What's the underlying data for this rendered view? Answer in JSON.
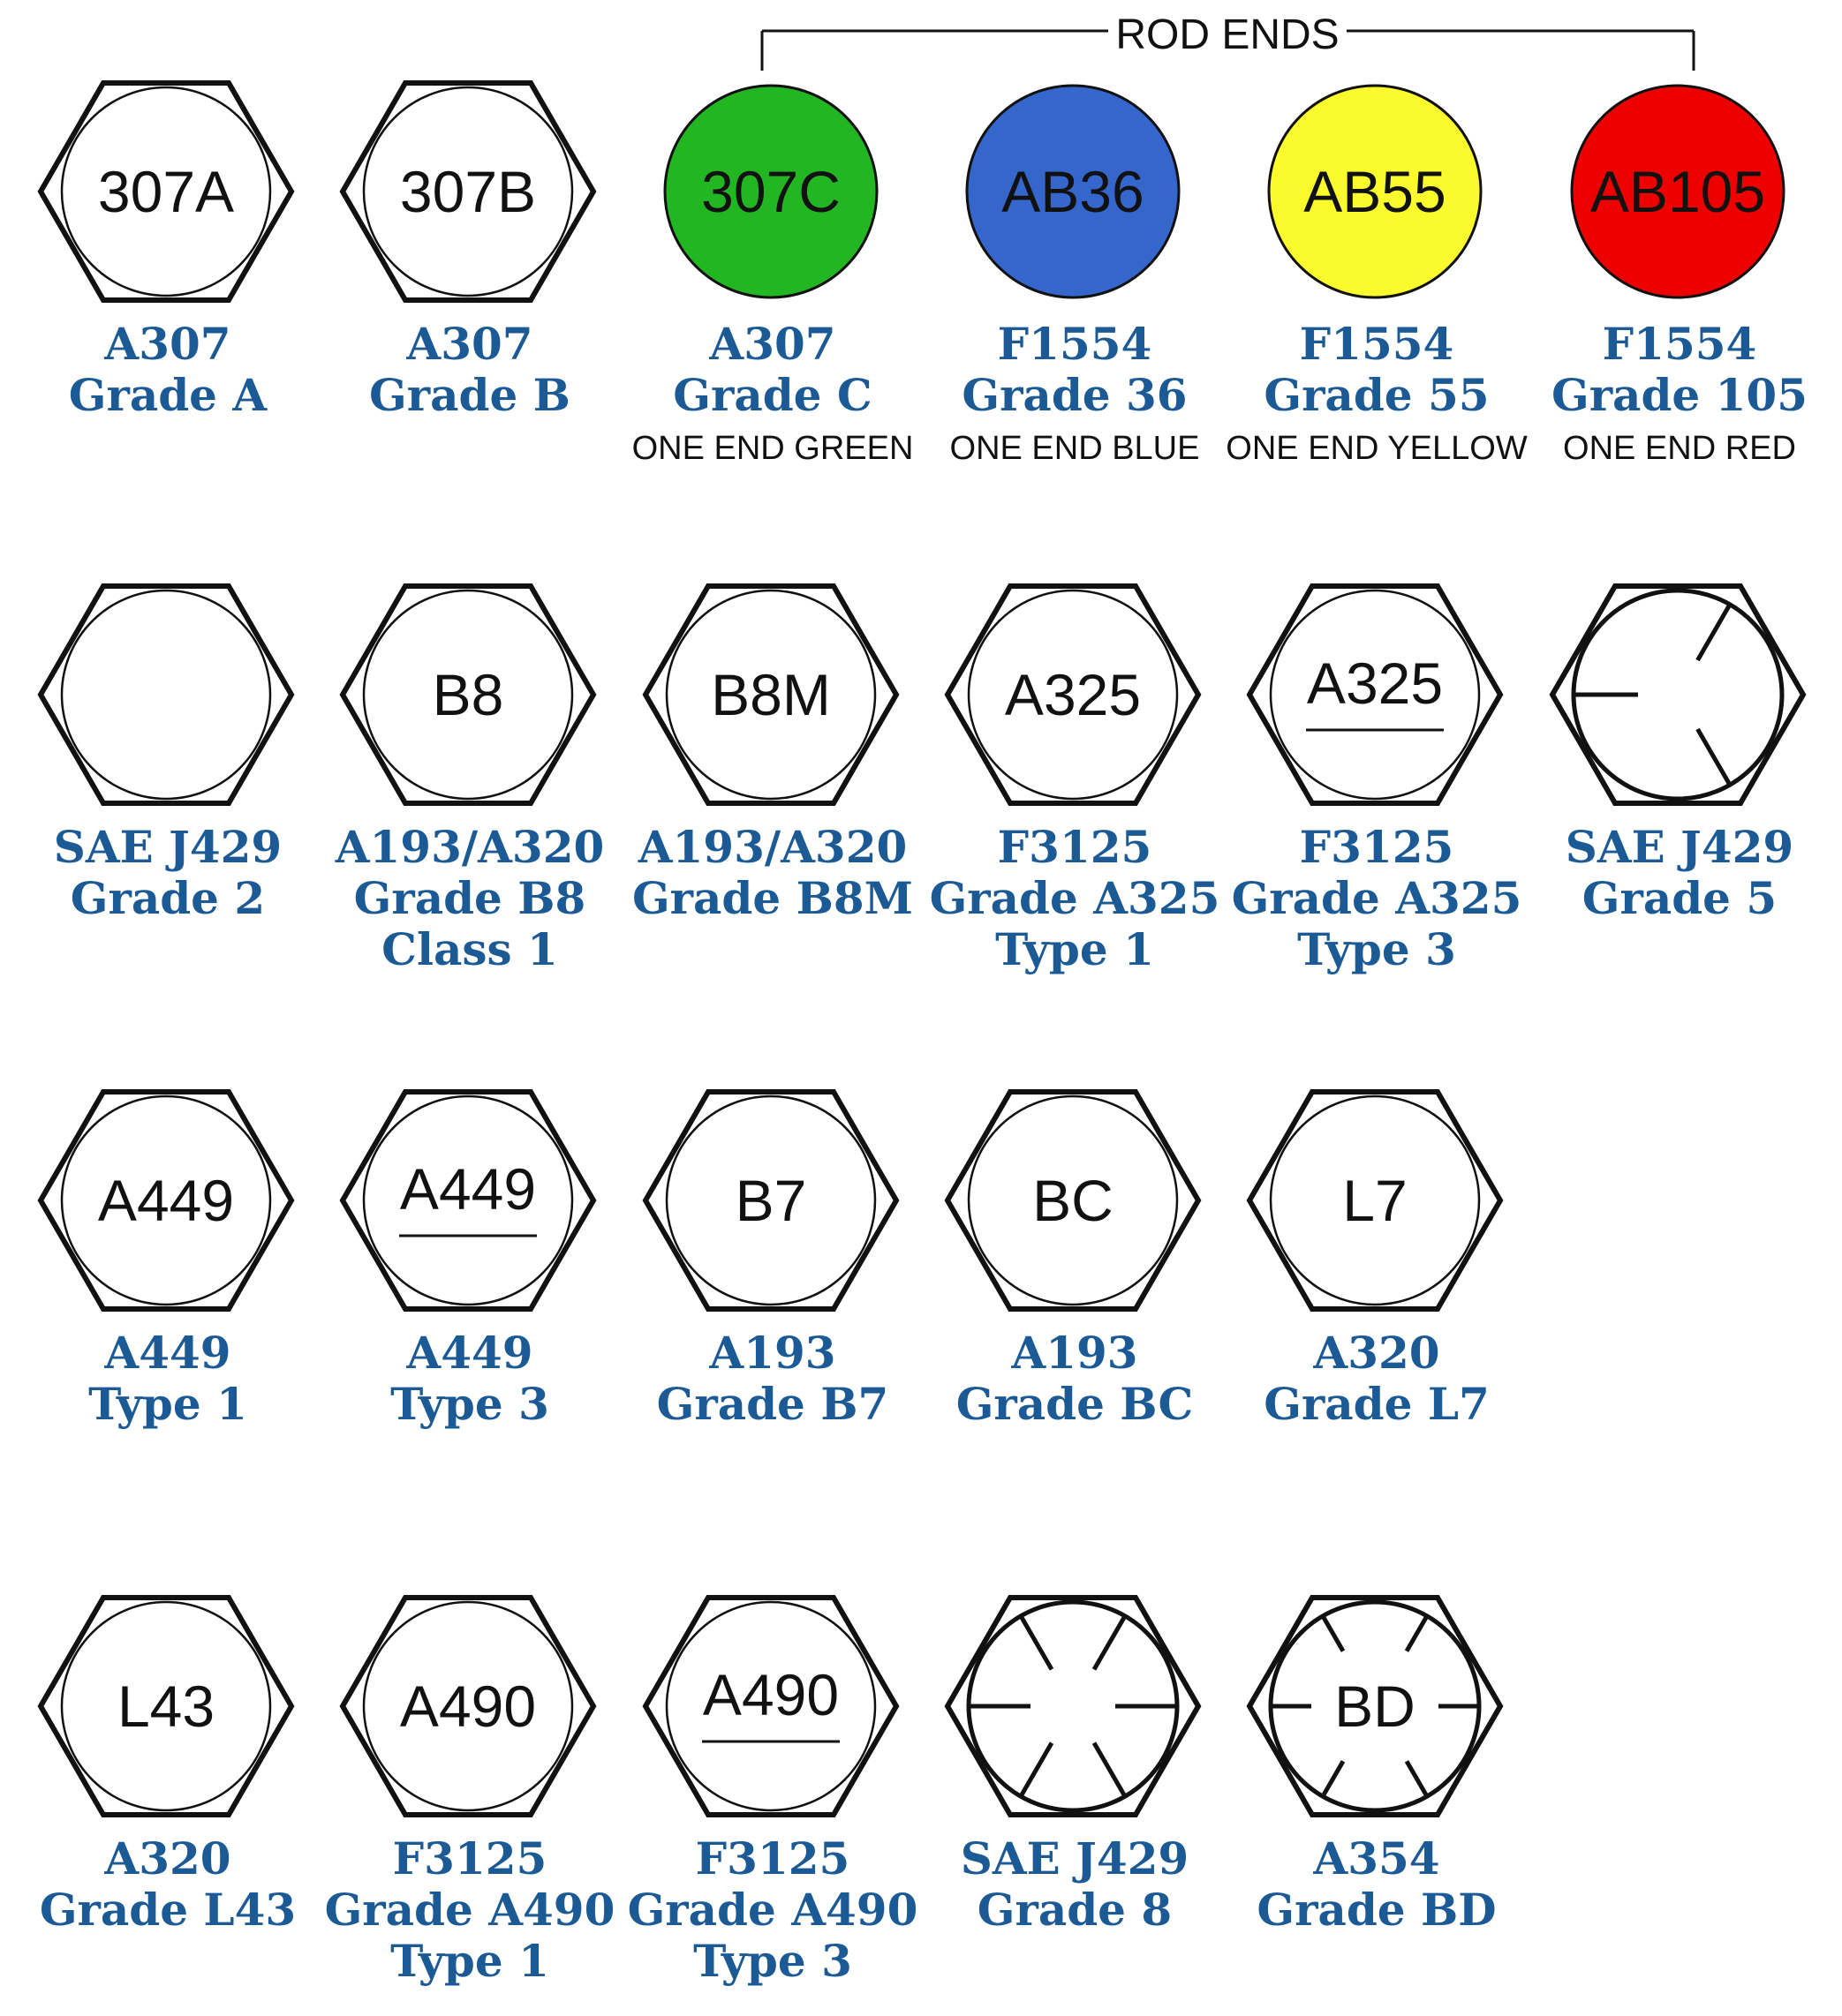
{
  "rod_ends_header": "ROD ENDS",
  "colors": {
    "label_text": "#1c5a96",
    "green": "#22b623",
    "blue": "#3466cc",
    "yellow": "#fafa2d",
    "red": "#ee0000"
  },
  "rows": [
    {
      "items": [
        {
          "shape": "hex",
          "mark": "307A",
          "label": [
            "A307",
            "Grade A"
          ],
          "note": ""
        },
        {
          "shape": "hex",
          "mark": "307B",
          "label": [
            "A307",
            "Grade B"
          ],
          "note": ""
        },
        {
          "shape": "circle",
          "fill": "#22b623",
          "mark": "307C",
          "label": [
            "A307",
            "Grade C"
          ],
          "note": "ONE END GREEN"
        },
        {
          "shape": "circle",
          "fill": "#3466cc",
          "mark": "AB36",
          "label": [
            "F1554",
            "Grade 36"
          ],
          "note": "ONE END BLUE"
        },
        {
          "shape": "circle",
          "fill": "#fafa2d",
          "mark": "AB55",
          "label": [
            "F1554",
            "Grade 55"
          ],
          "note": "ONE END YELLOW"
        },
        {
          "shape": "circle",
          "fill": "#ee0000",
          "mark": "AB105",
          "label": [
            "F1554",
            "Grade 105"
          ],
          "note": "ONE END RED"
        }
      ]
    },
    {
      "items": [
        {
          "shape": "hex",
          "mark": "",
          "label": [
            "SAE J429",
            "Grade 2"
          ],
          "note": ""
        },
        {
          "shape": "hex",
          "mark": "B8",
          "label": [
            "A193/A320",
            "Grade B8",
            "Class 1"
          ],
          "note": ""
        },
        {
          "shape": "hex",
          "mark": "B8M",
          "label": [
            "A193/A320",
            "Grade B8M"
          ],
          "note": ""
        },
        {
          "shape": "hex",
          "mark": "A325",
          "label": [
            "F3125",
            "Grade A325",
            "Type 1"
          ],
          "note": ""
        },
        {
          "shape": "hex",
          "mark": "A325",
          "underline": true,
          "label": [
            "F3125",
            "Grade A325",
            "Type 3"
          ],
          "note": ""
        },
        {
          "shape": "hex",
          "radial": "three",
          "mark": "",
          "label": [
            "SAE J429",
            "Grade 5"
          ],
          "note": ""
        }
      ]
    },
    {
      "items": [
        {
          "shape": "hex",
          "mark": "A449",
          "label": [
            "A449",
            "Type 1"
          ],
          "note": ""
        },
        {
          "shape": "hex",
          "mark": "A449",
          "underline": true,
          "label": [
            "A449",
            "Type 3"
          ],
          "note": ""
        },
        {
          "shape": "hex",
          "mark": "B7",
          "label": [
            "A193",
            "Grade B7"
          ],
          "note": ""
        },
        {
          "shape": "hex",
          "mark": "BC",
          "label": [
            "A193",
            "Grade BC"
          ],
          "note": ""
        },
        {
          "shape": "hex",
          "mark": "L7",
          "label": [
            "A320",
            "Grade L7"
          ],
          "note": ""
        }
      ]
    },
    {
      "items": [
        {
          "shape": "hex",
          "mark": "L43",
          "label": [
            "A320",
            "Grade L43"
          ],
          "note": ""
        },
        {
          "shape": "hex",
          "mark": "A490",
          "label": [
            "F3125",
            "Grade A490",
            "Type 1"
          ],
          "note": ""
        },
        {
          "shape": "hex",
          "mark": "A490",
          "underline": true,
          "label": [
            "F3125",
            "Grade A490",
            "Type 3"
          ],
          "note": ""
        },
        {
          "shape": "hex",
          "radial": "six",
          "mark": "",
          "label": [
            "SAE J429",
            "Grade 8"
          ],
          "note": ""
        },
        {
          "shape": "hex",
          "radial": "six",
          "mark": "BD",
          "label": [
            "A354",
            "Grade BD"
          ],
          "note": ""
        }
      ]
    }
  ]
}
